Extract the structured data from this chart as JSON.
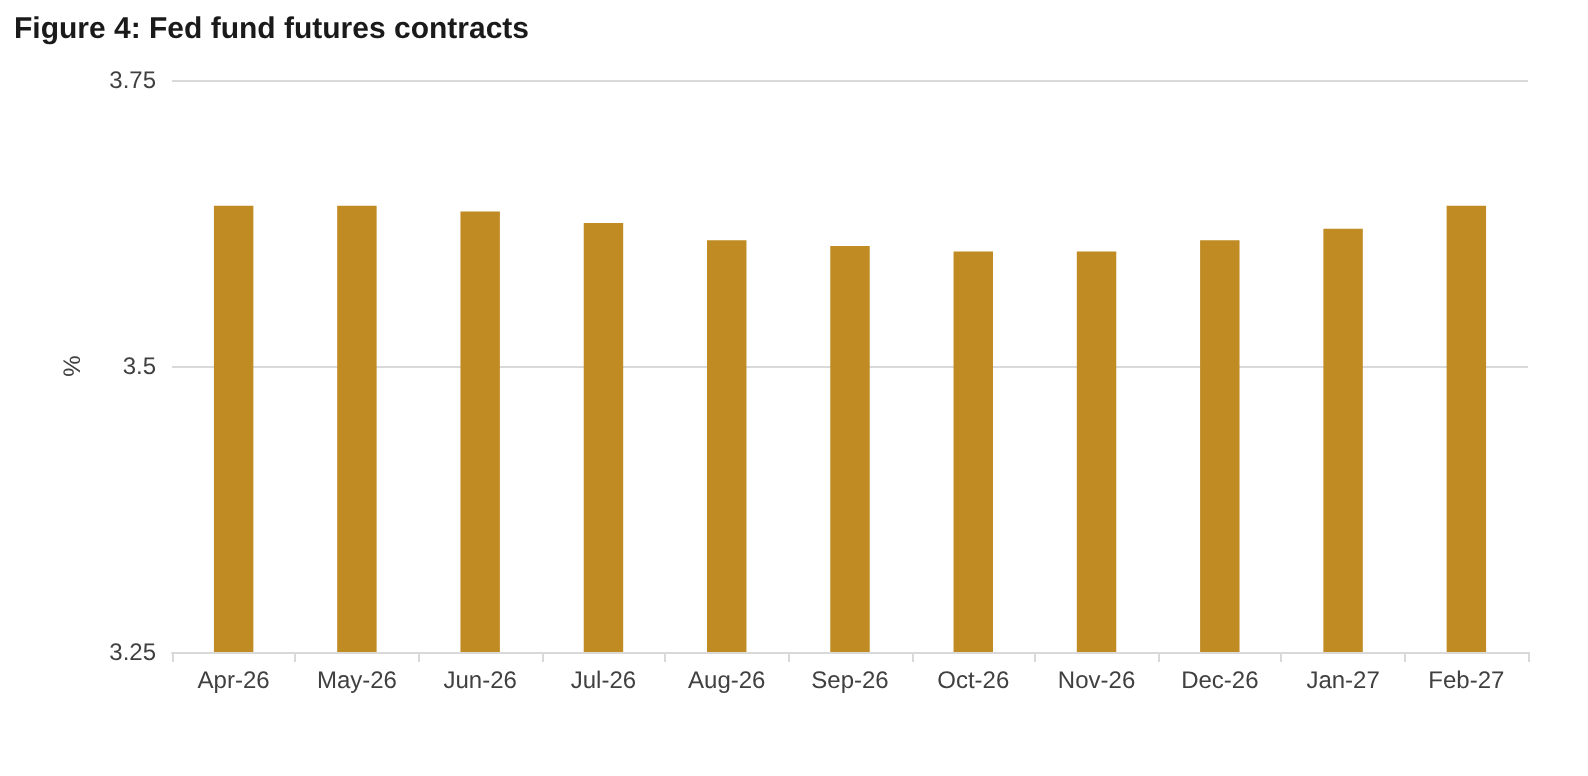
{
  "chart_data": {
    "type": "bar",
    "title": "Figure 4: Fed fund futures contracts",
    "ylabel": "%",
    "categories": [
      "Apr-26",
      "May-26",
      "Jun-26",
      "Jul-26",
      "Aug-26",
      "Sep-26",
      "Oct-26",
      "Nov-26",
      "Dec-26",
      "Jan-27",
      "Feb-27"
    ],
    "values": [
      3.64,
      3.64,
      3.635,
      3.625,
      3.61,
      3.605,
      3.6,
      3.6,
      3.61,
      3.62,
      3.64
    ],
    "color": "#c18b23",
    "ylim": [
      3.25,
      3.75
    ],
    "yticks": [
      3.25,
      3.5,
      3.75
    ],
    "grid": "y"
  }
}
